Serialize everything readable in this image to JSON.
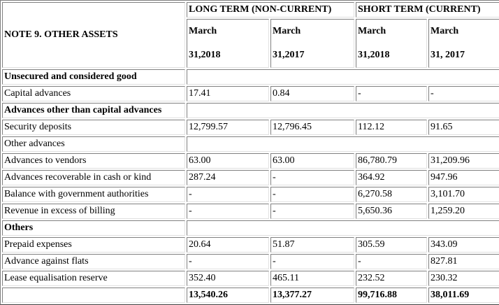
{
  "table": {
    "title": "NOTE 9. OTHER ASSETS",
    "groups": {
      "long_term": "LONG TERM (NON-CURRENT)",
      "short_term": "SHORT TERM (CURRENT)"
    },
    "period_headers": [
      {
        "line1": "March",
        "line2": "31,2018"
      },
      {
        "line1": "March",
        "line2": "31,2017"
      },
      {
        "line1": "March",
        "line2": "31,2018"
      },
      {
        "line1": "March",
        "line2": "31, 2017"
      }
    ],
    "rows": [
      {
        "type": "section",
        "label": "Unsecured and considered good"
      },
      {
        "type": "data",
        "label": "Capital advances",
        "values": [
          "17.41",
          "0.84",
          "-",
          "-"
        ]
      },
      {
        "type": "section",
        "label": "Advances other than capital advances"
      },
      {
        "type": "data",
        "label": "Security deposits",
        "values": [
          "12,799.57",
          "12,796.45",
          "112.12",
          "91.65"
        ]
      },
      {
        "type": "subsection",
        "label": "Other advances"
      },
      {
        "type": "data",
        "label": "Advances to vendors",
        "values": [
          "63.00",
          "63.00",
          "86,780.79",
          "31,209.96"
        ]
      },
      {
        "type": "data",
        "label": "Advances recoverable in cash or kind",
        "values": [
          "287.24",
          "-",
          "364.92",
          "947.96"
        ]
      },
      {
        "type": "data",
        "label": "Balance with government authorities",
        "values": [
          "-",
          "-",
          "6,270.58",
          "3,101.70"
        ]
      },
      {
        "type": "data",
        "label": "Revenue in excess of billing",
        "values": [
          "-",
          "-",
          "5,650.36",
          "1,259.20"
        ]
      },
      {
        "type": "section",
        "label": "Others"
      },
      {
        "type": "data",
        "label": "Prepaid expenses",
        "values": [
          "20.64",
          "51.87",
          "305.59",
          "343.09"
        ]
      },
      {
        "type": "data",
        "label": "Advance against flats",
        "values": [
          "-",
          "-",
          "-",
          "827.81"
        ]
      },
      {
        "type": "data",
        "label": "Lease equalisation reserve",
        "values": [
          "352.40",
          "465.11",
          "232.52",
          "230.32"
        ]
      },
      {
        "type": "total",
        "label": "",
        "values": [
          "13,540.26",
          "13,377.27",
          "99,716.88",
          "38,011.69"
        ]
      }
    ]
  }
}
